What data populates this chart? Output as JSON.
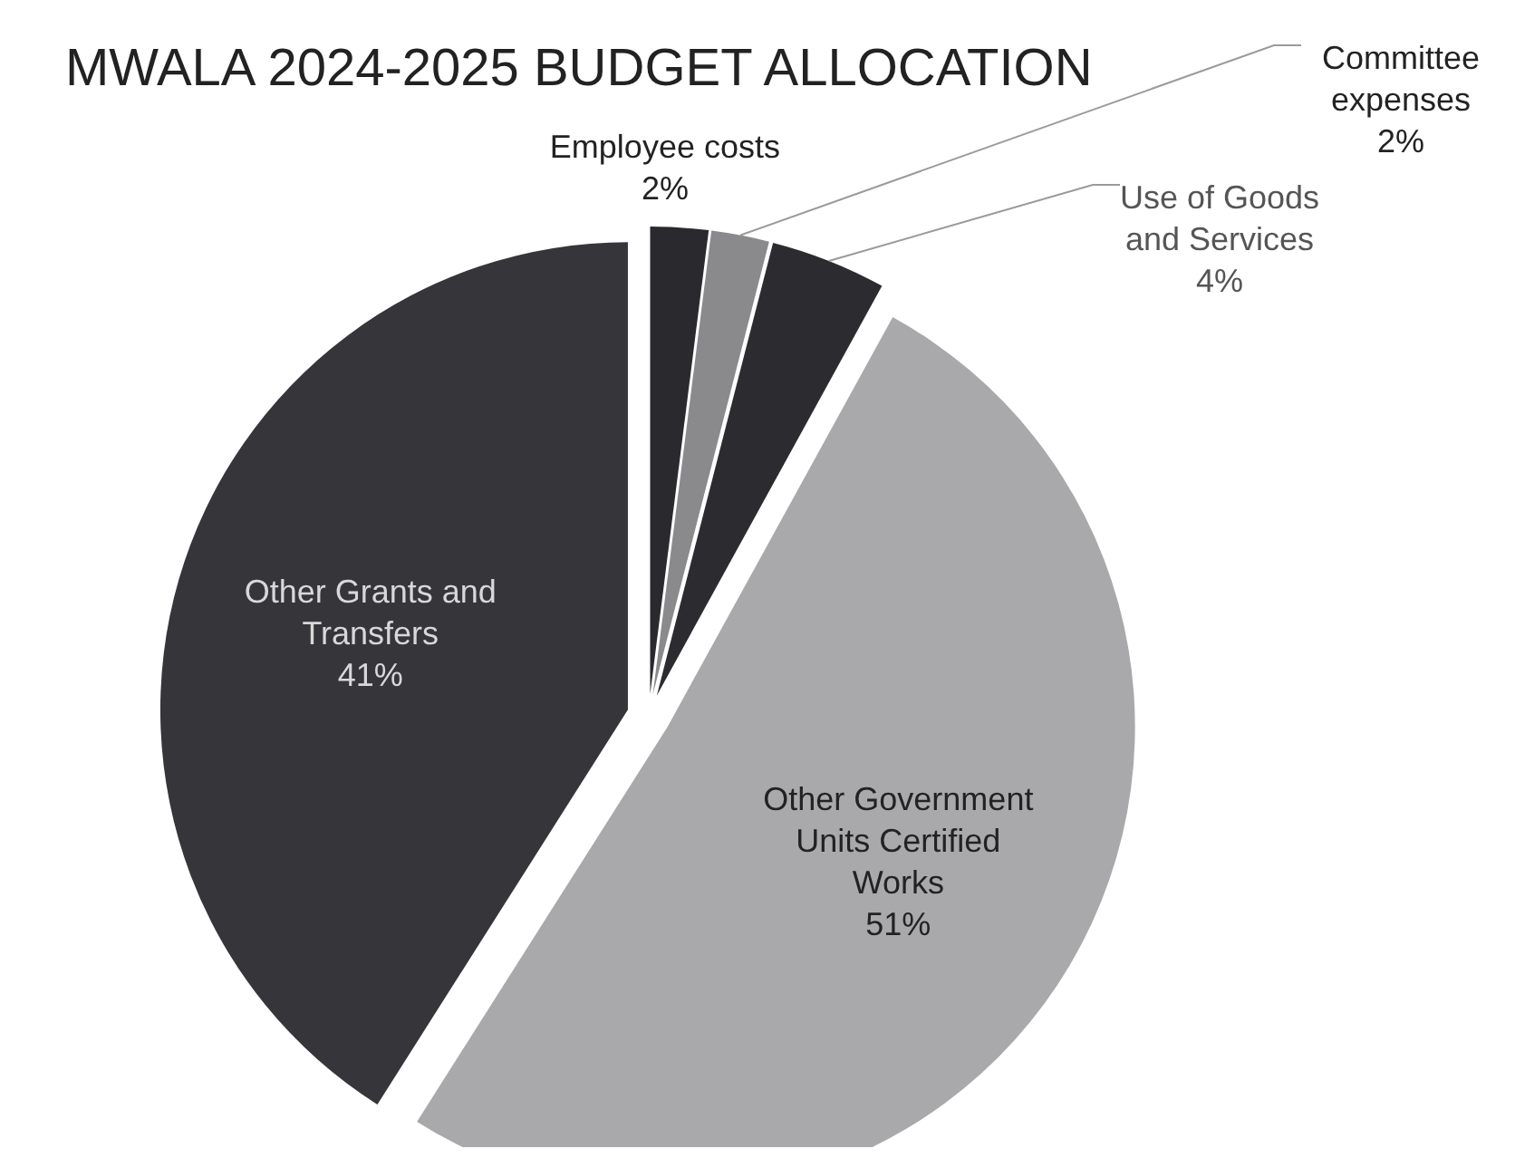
{
  "chart_data": {
    "type": "pie",
    "title": "MWALA 2024-2025 BUDGET ALLOCATION",
    "categories": [
      "Employee costs",
      "Committee expenses",
      "Use of Goods and Services",
      "Other Government Units Certified Works",
      "Other Grants and Transfers"
    ],
    "values": [
      2,
      2,
      4,
      51,
      41
    ],
    "colors": [
      "#2a2a2e",
      "#8a8a8c",
      "#2c2c30",
      "#a9a9ab",
      "#35353a"
    ],
    "value_labels": [
      "2%",
      "2%",
      "4%",
      "51%",
      "41%"
    ],
    "legend": false
  }
}
